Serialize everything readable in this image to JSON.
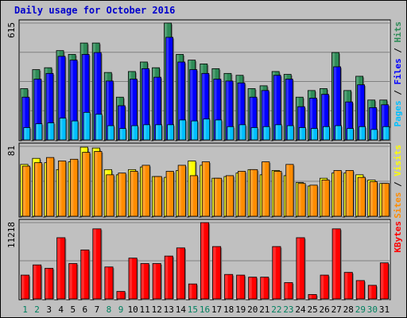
{
  "chart_data": {
    "title": "Daily usage for October 2016",
    "days": [
      "1",
      "2",
      "3",
      "4",
      "5",
      "6",
      "7",
      "8",
      "9",
      "10",
      "11",
      "12",
      "13",
      "14",
      "15",
      "16",
      "17",
      "18",
      "19",
      "20",
      "21",
      "22",
      "23",
      "24",
      "25",
      "26",
      "27",
      "28",
      "29",
      "30",
      "31"
    ],
    "weekend_color": "#00805f",
    "weekday_color": "#00805f",
    "panels": [
      {
        "type": "bar",
        "ymax": 615,
        "ymax_label": "615",
        "legend": [
          "Pages",
          "Files",
          "Hits"
        ],
        "legend_colors": [
          "#00bfff",
          "#0000ff",
          "#2e8b57"
        ],
        "series": [
          {
            "name": "Hits",
            "color": "#2e8b57",
            "values": [
              270,
              370,
              380,
              470,
              450,
              510,
              510,
              355,
              225,
              360,
              410,
              380,
              615,
              450,
              420,
              400,
              375,
              350,
              340,
              270,
              285,
              360,
              345,
              225,
              260,
              270,
              460,
              260,
              335,
              210,
              210
            ]
          },
          {
            "name": "Files",
            "color": "#0000ff",
            "values": [
              225,
              320,
              350,
              440,
              420,
              450,
              460,
              310,
              180,
              320,
              375,
              330,
              540,
              410,
              370,
              350,
              320,
              310,
              300,
              225,
              260,
              340,
              320,
              175,
              220,
              240,
              385,
              200,
              290,
              170,
              185
            ]
          },
          {
            "name": "Pages",
            "color": "#00bfff",
            "values": [
              65,
              85,
              90,
              115,
              100,
              145,
              135,
              75,
              60,
              75,
              80,
              80,
              80,
              105,
              100,
              110,
              105,
              70,
              80,
              65,
              70,
              80,
              75,
              65,
              60,
              70,
              75,
              60,
              70,
              55,
              70
            ]
          }
        ]
      },
      {
        "type": "bar",
        "ymax": 81,
        "ymax_label": "81",
        "legend": [
          "Sites",
          "Visits"
        ],
        "legend_colors": [
          "#ff8c00",
          "#ffff00"
        ],
        "series": [
          {
            "name": "Visits",
            "color": "#ffff00",
            "values": [
              60,
              67,
              62,
              54,
              63,
              80,
              79,
              54,
              48,
              54,
              57,
              46,
              45,
              53,
              64,
              59,
              44,
              46,
              50,
              54,
              48,
              53,
              47,
              39,
              35,
              44,
              50,
              50,
              48,
              42,
              38
            ]
          },
          {
            "name": "Sites",
            "color": "#ff8c00",
            "values": [
              58,
              62,
              68,
              64,
              66,
              74,
              75,
              48,
              50,
              52,
              59,
              46,
              52,
              59,
              47,
              63,
              44,
              47,
              52,
              54,
              63,
              52,
              60,
              38,
              36,
              42,
              53,
              53,
              45,
              40,
              38
            ]
          }
        ]
      },
      {
        "type": "bar",
        "ymax": 11218,
        "ymax_label": "11218",
        "legend": [
          "KBytes"
        ],
        "legend_colors": [
          "#ff0000"
        ],
        "series": [
          {
            "name": "KBytes",
            "color": "#ff0000",
            "values": [
              3500,
              5000,
              4500,
              9000,
              5200,
              7200,
              10300,
              4700,
              1100,
              6000,
              5200,
              5200,
              6300,
              7500,
              2200,
              11218,
              7700,
              3600,
              3500,
              3200,
              3200,
              7700,
              2400,
              9000,
              650,
              3500,
              10300,
              3900,
              2700,
              2000,
              5300
            ]
          }
        ]
      }
    ]
  }
}
